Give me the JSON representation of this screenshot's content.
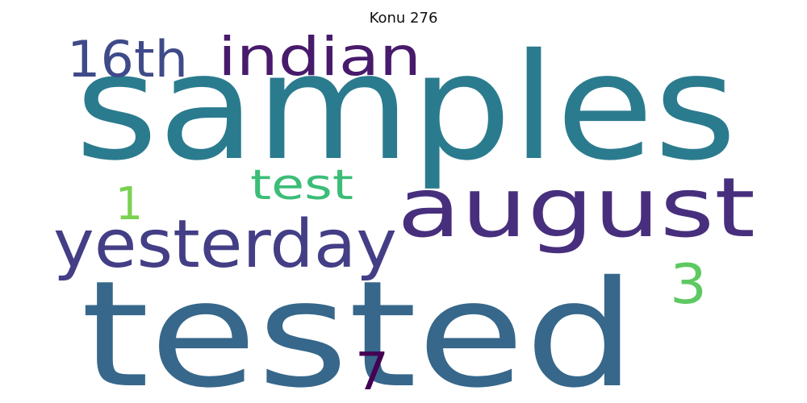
{
  "title": "Konu 276",
  "words": [
    {
      "text": "samples",
      "color": "#2b7b8e"
    },
    {
      "text": "tested",
      "color": "#37678a"
    },
    {
      "text": "august",
      "color": "#472f7d"
    },
    {
      "text": "yesterday",
      "color": "#433e85"
    },
    {
      "text": "indian",
      "color": "#481a6c"
    },
    {
      "text": "16th",
      "color": "#3f4a89"
    },
    {
      "text": "test",
      "color": "#3bbd77"
    },
    {
      "text": "3",
      "color": "#5ec962"
    },
    {
      "text": "1",
      "color": "#7ad151"
    },
    {
      "text": "7",
      "color": "#440154"
    }
  ]
}
